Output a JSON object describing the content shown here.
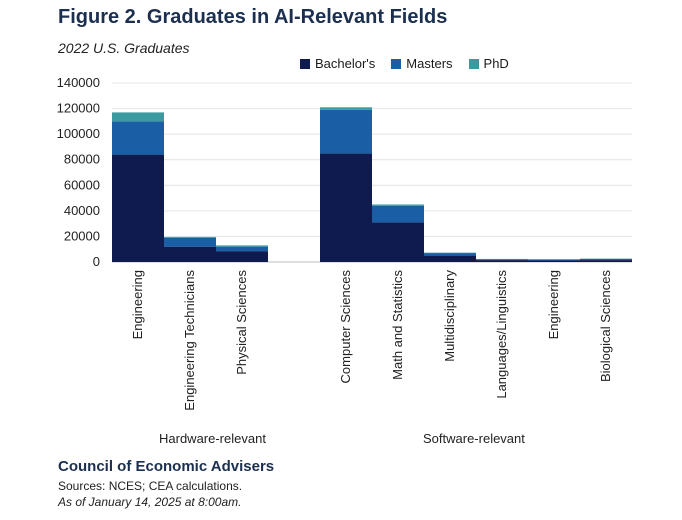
{
  "title": "Figure 2. Graduates in AI-Relevant Fields",
  "subtitle": "2022 U.S. Graduates",
  "colors": {
    "bachelors": "#0f1a4e",
    "masters": "#1a5fa6",
    "phd": "#3a9aa0"
  },
  "chart_data": {
    "type": "bar",
    "stacked": true,
    "categories": [
      "Engineering",
      "Engineering Technicians",
      "Physical Sciences",
      "Computer Sciences",
      "Math and Statistics",
      "Multidisciplinary",
      "Languages/Linguistics",
      "Engineering",
      "Biological Sciences"
    ],
    "groups": [
      {
        "label": "Hardware-relevant",
        "categories": [
          0,
          1,
          2
        ]
      },
      {
        "label": "Software-relevant",
        "categories": [
          3,
          4,
          5,
          6,
          7,
          8
        ]
      }
    ],
    "series": [
      {
        "name": "Bachelor's",
        "values": [
          84000,
          12000,
          8500,
          85000,
          31000,
          5000,
          1500,
          1200,
          1500
        ]
      },
      {
        "name": "Masters",
        "values": [
          26000,
          7000,
          3500,
          34000,
          13000,
          2000,
          700,
          800,
          1000
        ]
      },
      {
        "name": "PhD",
        "values": [
          7000,
          600,
          1000,
          2000,
          1000,
          300,
          200,
          100,
          200
        ]
      }
    ],
    "ylim": [
      0,
      140000
    ],
    "yticks": [
      "0",
      "20000",
      "40000",
      "60000",
      "80000",
      "100000",
      "120000",
      "140000"
    ],
    "grid": true,
    "legend_position": "top"
  },
  "footer": {
    "org": "Council of Economic Advisers",
    "sources": "Sources: NCES; CEA calculations.",
    "date": "As of January 14, 2025 at 8:00am."
  }
}
